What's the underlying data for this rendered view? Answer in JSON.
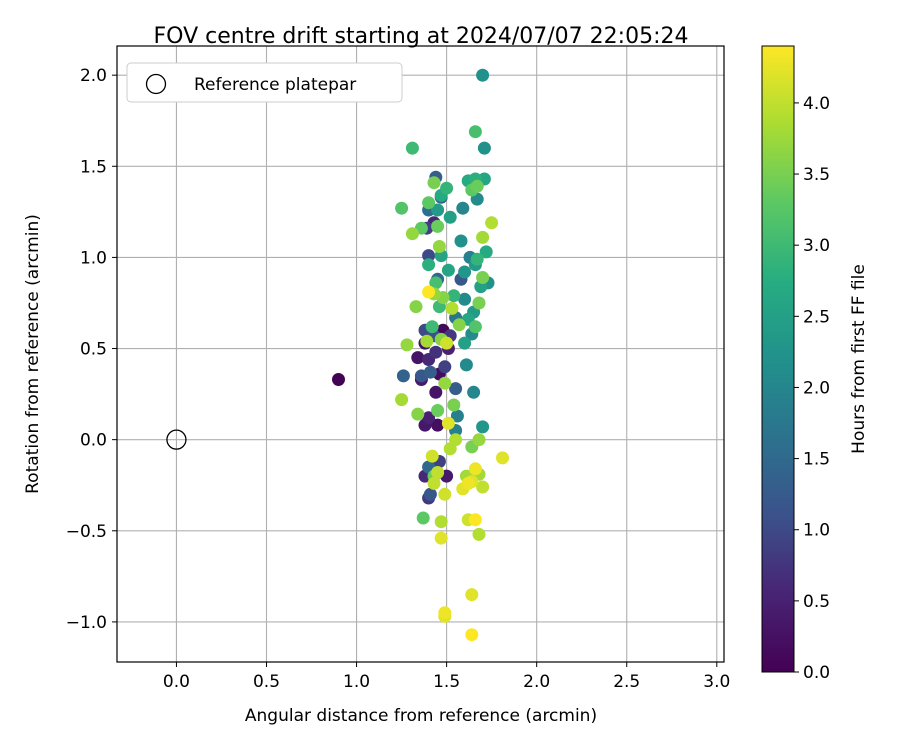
{
  "chart_data": {
    "type": "scatter",
    "title": "FOV centre drift starting at 2024/07/07 22:05:24",
    "xlabel": "Angular distance from reference (arcmin)",
    "ylabel": "Rotation from reference (arcmin)",
    "xlim": [
      -0.33,
      3.04
    ],
    "ylim": [
      -1.22,
      2.16
    ],
    "xticks": [
      0.0,
      0.5,
      1.0,
      1.5,
      2.0,
      2.5,
      3.0
    ],
    "xtick_labels": [
      "0.0",
      "0.5",
      "1.0",
      "1.5",
      "2.0",
      "2.5",
      "3.0"
    ],
    "yticks": [
      -1.0,
      -0.5,
      0.0,
      0.5,
      1.0,
      1.5,
      2.0
    ],
    "ytick_labels": [
      "−1.0",
      "−0.5",
      "0.0",
      "0.5",
      "1.0",
      "1.5",
      "2.0"
    ],
    "grid": true,
    "legend": {
      "position": "top-left",
      "label": "Reference platepar"
    },
    "reference_point": {
      "x": 0.0,
      "y": 0.0
    },
    "colorbar": {
      "label": "Hours from first FF file",
      "range": [
        0.0,
        4.4
      ],
      "ticks": [
        0.0,
        0.5,
        1.0,
        1.5,
        2.0,
        2.5,
        3.0,
        3.5,
        4.0
      ],
      "tick_labels": [
        "0.0",
        "0.5",
        "1.0",
        "1.5",
        "2.0",
        "2.5",
        "3.0",
        "3.5",
        "4.0"
      ],
      "colormap": "viridis"
    },
    "points": [
      [
        0.9,
        0.33,
        0.02
      ],
      [
        1.38,
        0.08,
        0.35
      ],
      [
        1.4,
        0.12,
        0.5
      ],
      [
        1.45,
        0.08,
        0.2
      ],
      [
        1.44,
        0.26,
        0.3
      ],
      [
        1.38,
        -0.2,
        0.6
      ],
      [
        1.4,
        -0.32,
        0.8
      ],
      [
        1.41,
        -0.3,
        1.2
      ],
      [
        1.5,
        -0.2,
        0.4
      ],
      [
        1.46,
        -0.12,
        0.9
      ],
      [
        1.4,
        -0.15,
        1.5
      ],
      [
        1.36,
        0.33,
        0.4
      ],
      [
        1.4,
        0.44,
        0.6
      ],
      [
        1.34,
        0.45,
        0.3
      ],
      [
        1.41,
        0.37,
        1.3
      ],
      [
        1.44,
        0.48,
        0.7
      ],
      [
        1.48,
        0.6,
        0.1
      ],
      [
        1.52,
        0.57,
        0.8
      ],
      [
        1.38,
        0.6,
        1.0
      ],
      [
        1.43,
        0.57,
        1.1
      ],
      [
        1.38,
        0.53,
        0.2
      ],
      [
        1.51,
        0.5,
        0.5
      ],
      [
        1.49,
        0.4,
        0.9
      ],
      [
        1.46,
        0.36,
        0.15
      ],
      [
        1.36,
        0.35,
        1.2
      ],
      [
        1.26,
        0.35,
        1.4
      ],
      [
        1.55,
        0.28,
        1.3
      ],
      [
        1.4,
        1.01,
        1.0
      ],
      [
        1.45,
        0.88,
        1.5
      ],
      [
        1.39,
        1.16,
        0.9
      ],
      [
        1.44,
        1.44,
        1.3
      ],
      [
        1.58,
        0.88,
        1.2
      ],
      [
        1.55,
        0.67,
        1.7
      ],
      [
        1.43,
        1.19,
        0.6
      ],
      [
        1.4,
        1.26,
        1.6
      ],
      [
        1.47,
        1.33,
        1.4
      ],
      [
        1.55,
        0.05,
        1.9
      ],
      [
        1.56,
        0.13,
        1.9
      ],
      [
        1.65,
        0.26,
        2.0
      ],
      [
        1.61,
        0.41,
        2.1
      ],
      [
        1.64,
        0.58,
        2.1
      ],
      [
        1.7,
        0.07,
        2.3
      ],
      [
        1.7,
        2.0,
        2.2
      ],
      [
        1.71,
        1.6,
        2.2
      ],
      [
        1.67,
        1.32,
        2.1
      ],
      [
        1.59,
        1.27,
        2.0
      ],
      [
        1.58,
        1.09,
        2.2
      ],
      [
        1.63,
        1.0,
        1.9
      ],
      [
        1.6,
        0.92,
        2.3
      ],
      [
        1.66,
        0.96,
        2.4
      ],
      [
        1.69,
        0.84,
        2.5
      ],
      [
        1.73,
        0.86,
        2.2
      ],
      [
        1.65,
        0.7,
        2.4
      ],
      [
        1.6,
        0.77,
        2.1
      ],
      [
        1.6,
        0.53,
        2.5
      ],
      [
        1.62,
        0.66,
        2.6
      ],
      [
        1.51,
        0.93,
        2.6
      ],
      [
        1.47,
        1.01,
        2.6
      ],
      [
        1.52,
        1.22,
        2.5
      ],
      [
        1.45,
        1.26,
        2.4
      ],
      [
        1.47,
        1.34,
        2.7
      ],
      [
        1.66,
        1.43,
        2.8
      ],
      [
        1.71,
        1.43,
        2.6
      ],
      [
        1.72,
        1.03,
        2.7
      ],
      [
        1.67,
        0.99,
        2.9
      ],
      [
        1.62,
        1.42,
        2.7
      ],
      [
        1.5,
        1.38,
        2.9
      ],
      [
        1.54,
        0.79,
        2.9
      ],
      [
        1.46,
        0.73,
        3.0
      ],
      [
        1.42,
        0.62,
        3.0
      ],
      [
        1.4,
        0.96,
        2.8
      ],
      [
        1.44,
        0.86,
        3.1
      ],
      [
        1.66,
        1.69,
        3.1
      ],
      [
        1.31,
        1.6,
        3.0
      ],
      [
        1.25,
        1.27,
        3.2
      ],
      [
        1.4,
        1.3,
        3.3
      ],
      [
        1.36,
        1.16,
        3.3
      ],
      [
        1.45,
        1.17,
        3.4
      ],
      [
        1.43,
        1.41,
        3.5
      ],
      [
        1.64,
        1.37,
        3.3
      ],
      [
        1.67,
        1.39,
        3.4
      ],
      [
        1.7,
        0.89,
        3.5
      ],
      [
        1.66,
        0.62,
        3.2
      ],
      [
        1.68,
        0.75,
        3.5
      ],
      [
        1.57,
        0.63,
        3.6
      ],
      [
        1.48,
        0.78,
        3.6
      ],
      [
        1.43,
        0.8,
        3.7
      ],
      [
        1.31,
        1.13,
        3.7
      ],
      [
        1.33,
        0.73,
        3.6
      ],
      [
        1.28,
        0.52,
        3.7
      ],
      [
        1.39,
        0.54,
        3.8
      ],
      [
        1.47,
        0.55,
        3.6
      ],
      [
        1.54,
        0.19,
        3.5
      ],
      [
        1.49,
        0.31,
        3.7
      ],
      [
        1.45,
        0.16,
        3.4
      ],
      [
        1.34,
        0.14,
        3.6
      ],
      [
        1.25,
        0.22,
        3.8
      ],
      [
        1.46,
        1.06,
        3.7
      ],
      [
        1.7,
        1.11,
        3.8
      ],
      [
        1.75,
        1.19,
        3.9
      ],
      [
        1.53,
        0.72,
        3.9
      ],
      [
        1.37,
        -0.43,
        3.3
      ],
      [
        1.43,
        -0.2,
        3.4
      ],
      [
        1.64,
        -0.04,
        3.5
      ],
      [
        1.68,
        0.0,
        3.7
      ],
      [
        1.61,
        -0.2,
        3.8
      ],
      [
        1.68,
        -0.19,
        3.8
      ],
      [
        1.55,
        0.0,
        3.9
      ],
      [
        1.52,
        -0.05,
        3.9
      ],
      [
        1.43,
        -0.24,
        4.0
      ],
      [
        1.45,
        -0.18,
        4.0
      ],
      [
        1.49,
        -0.3,
        4.1
      ],
      [
        1.42,
        -0.09,
        4.1
      ],
      [
        1.47,
        -0.45,
        3.9
      ],
      [
        1.47,
        -0.54,
        4.2
      ],
      [
        1.59,
        -0.27,
        4.2
      ],
      [
        1.62,
        -0.24,
        4.3
      ],
      [
        1.64,
        -0.23,
        4.2
      ],
      [
        1.66,
        -0.16,
        4.3
      ],
      [
        1.7,
        -0.26,
        4.0
      ],
      [
        1.62,
        -0.44,
        4.1
      ],
      [
        1.66,
        -0.44,
        4.4
      ],
      [
        1.68,
        -0.52,
        3.9
      ],
      [
        1.81,
        -0.1,
        4.2
      ],
      [
        1.64,
        -0.85,
        4.2
      ],
      [
        1.49,
        -0.95,
        4.3
      ],
      [
        1.49,
        -0.97,
        4.2
      ],
      [
        1.64,
        -1.07,
        4.4
      ],
      [
        1.4,
        0.81,
        4.4
      ],
      [
        1.51,
        0.09,
        4.2
      ],
      [
        1.5,
        0.53,
        4.1
      ]
    ]
  }
}
